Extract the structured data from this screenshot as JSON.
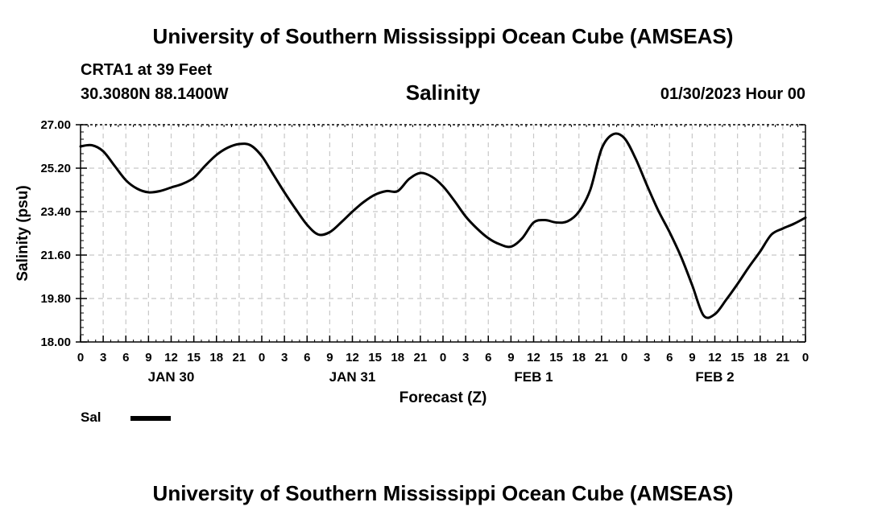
{
  "header": {
    "title": "University of Southern Mississippi Ocean Cube (AMSEAS)",
    "station": "CRTA1 at 39 Feet",
    "coords": "30.3080N  88.1400W",
    "date": "01/30/2023 Hour 00"
  },
  "footer": {
    "title": "University of Southern Mississippi Ocean Cube (AMSEAS)"
  },
  "legend": {
    "label": "Sal"
  },
  "chart_data": {
    "type": "line",
    "title": "Salinity",
    "xlabel": "Forecast (Z)",
    "ylabel": "Salinity (psu)",
    "xlim": [
      0,
      96
    ],
    "ylim": [
      18.0,
      27.0
    ],
    "yticks": [
      "18.00",
      "19.80",
      "21.60",
      "23.40",
      "25.20",
      "27.00"
    ],
    "ytick_values": [
      18.0,
      19.8,
      21.6,
      23.4,
      25.2,
      27.0
    ],
    "xtick_hours": [
      0,
      3,
      6,
      9,
      12,
      15,
      18,
      21,
      24,
      27,
      30,
      33,
      36,
      39,
      42,
      45,
      48,
      51,
      54,
      57,
      60,
      63,
      66,
      69,
      72,
      75,
      78,
      81,
      84,
      87,
      90,
      93,
      96
    ],
    "xtick_labels": [
      "0",
      "3",
      "6",
      "9",
      "12",
      "15",
      "18",
      "21",
      "0",
      "3",
      "6",
      "9",
      "12",
      "15",
      "18",
      "21",
      "0",
      "3",
      "6",
      "9",
      "12",
      "15",
      "18",
      "21",
      "0",
      "3",
      "6",
      "9",
      "12",
      "15",
      "18",
      "21",
      "0"
    ],
    "day_labels": [
      {
        "label": "JAN 30",
        "hour": 12
      },
      {
        "label": "JAN 31",
        "hour": 36
      },
      {
        "label": "FEB 1",
        "hour": 60
      },
      {
        "label": "FEB 2",
        "hour": 84
      }
    ],
    "grid": true,
    "series": [
      {
        "name": "Sal",
        "x": [
          0,
          1.5,
          3,
          4.5,
          6,
          7.5,
          9,
          10.5,
          12,
          13.5,
          15,
          16.5,
          18,
          19.5,
          21,
          22.5,
          24,
          25.5,
          27,
          28.5,
          30,
          31.5,
          33,
          34.5,
          36,
          37.5,
          39,
          40.5,
          42,
          43.5,
          45,
          46.5,
          48,
          49.5,
          51,
          52.5,
          54,
          55.5,
          57,
          58.5,
          60,
          61.5,
          63,
          64.5,
          66,
          67.5,
          69,
          70.5,
          72,
          73.5,
          75,
          76.5,
          78,
          79.5,
          81,
          82.5,
          84,
          85.5,
          87,
          88.5,
          90,
          91.5,
          93,
          94.5,
          96
        ],
        "values": [
          26.1,
          26.15,
          25.9,
          25.3,
          24.7,
          24.35,
          24.2,
          24.25,
          24.4,
          24.55,
          24.8,
          25.3,
          25.75,
          26.05,
          26.2,
          26.15,
          25.7,
          24.95,
          24.2,
          23.5,
          22.85,
          22.45,
          22.55,
          22.95,
          23.4,
          23.8,
          24.1,
          24.25,
          24.25,
          24.75,
          25.0,
          24.85,
          24.45,
          23.85,
          23.2,
          22.7,
          22.3,
          22.05,
          21.95,
          22.3,
          22.95,
          23.05,
          22.95,
          23.0,
          23.4,
          24.3,
          26.0,
          26.6,
          26.45,
          25.6,
          24.5,
          23.45,
          22.55,
          21.55,
          20.35,
          19.1,
          19.15,
          19.75,
          20.4,
          21.1,
          21.75,
          22.45,
          22.7,
          22.9,
          23.15
        ]
      }
    ]
  }
}
